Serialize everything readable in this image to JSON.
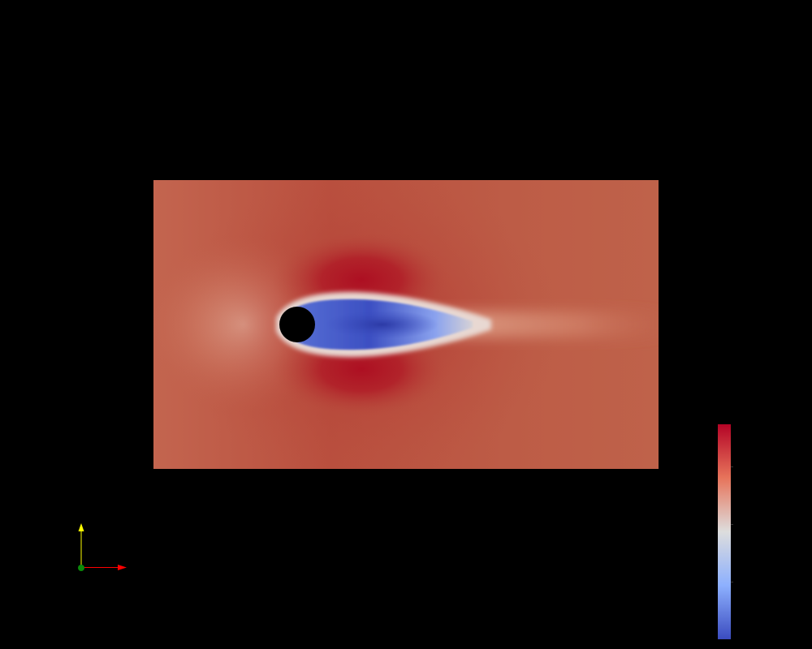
{
  "view": {
    "background_color": "#000000"
  },
  "flow_field": {
    "freestream_color": "#bf604a",
    "high_velocity_color": "#b40426",
    "wake_color": "#4358cb",
    "wake_core_color": "#2f3fb0",
    "shear_layer_color": "#dcdcdc",
    "obstacle": {
      "shape": "circle",
      "color": "#000000"
    }
  },
  "orientation_axes": {
    "x_axis_color": "#ff0000",
    "y_axis_color": "#ffff00",
    "z_axis_color": "#00aa00"
  },
  "scalar_bar": {
    "colormap": "Cool to Warm",
    "top_color": "#b40426",
    "middle_color": "#dddddd",
    "bottom_color": "#3b4cc0",
    "tick_count": 3
  }
}
